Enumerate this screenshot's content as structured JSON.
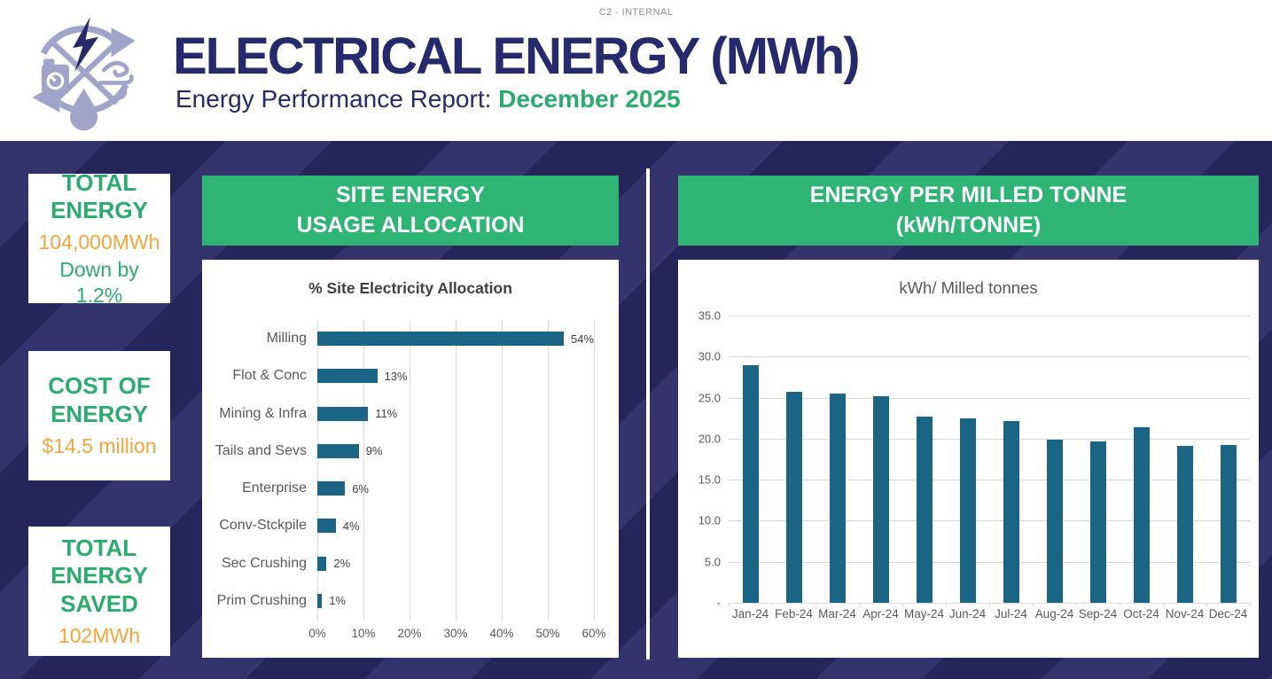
{
  "meta": {
    "classification": "C2 - INTERNAL"
  },
  "header": {
    "title": "ELECTRICAL ENERGY (MWh)",
    "subtitle_prefix": "Energy Performance Report: ",
    "subtitle_period": "December 2025"
  },
  "kpis": [
    {
      "title": "TOTAL ENERGY",
      "value": "104,000MWh",
      "note": "Down by 1.2%"
    },
    {
      "title": "COST OF ENERGY",
      "value": "$14.5 million",
      "note": ""
    },
    {
      "title": "TOTAL ENERGY SAVED",
      "value": "102MWh",
      "note": ""
    }
  ],
  "panels": {
    "allocation": {
      "header_line1": "SITE ENERGY",
      "header_line2": "USAGE ALLOCATION"
    },
    "intensity": {
      "header_line1": "ENERGY PER MILLED TONNE",
      "header_line2": "(kWh/TONNE)"
    }
  },
  "colors": {
    "navy_background": "#2b2a66",
    "green_accent": "#2eb573",
    "green_text": "#2cab6e",
    "orange_text": "#f4a53b",
    "bar_teal": "#1c6484",
    "title_navy": "#26296b",
    "gridline_gray": "#d9d9d9"
  },
  "chart_data": [
    {
      "type": "bar",
      "orientation": "horizontal",
      "title": "% Site Electricity Allocation",
      "categories": [
        "Milling",
        "Flot & Conc",
        "Mining & Infra",
        "Tails and Sevs",
        "Enterprise",
        "Conv-Stckpile",
        "Sec Crushing",
        "Prim Crushing"
      ],
      "values": [
        54,
        13,
        11,
        9,
        6,
        4,
        2,
        1
      ],
      "value_labels": [
        "54%",
        "13%",
        "11%",
        "9%",
        "6%",
        "4%",
        "2%",
        "1%"
      ],
      "xlim": [
        0,
        60
      ],
      "xticks": [
        "0%",
        "10%",
        "20%",
        "30%",
        "40%",
        "50%",
        "60%"
      ],
      "grid": "vertical",
      "legend": "none",
      "bar_color": "#1c6484"
    },
    {
      "type": "bar",
      "orientation": "vertical",
      "title": "kWh/ Milled tonnes",
      "categories": [
        "Jan-24",
        "Feb-24",
        "Mar-24",
        "Apr-24",
        "May-24",
        "Jun-24",
        "Jul-24",
        "Aug-24",
        "Sep-24",
        "Oct-24",
        "Nov-24",
        "Dec-24"
      ],
      "values": [
        29.0,
        25.7,
        25.5,
        25.2,
        22.7,
        22.5,
        22.2,
        19.9,
        19.7,
        21.4,
        19.1,
        19.2
      ],
      "ylim": [
        0,
        35
      ],
      "yticks": [
        "35.0",
        "30.0",
        "25.0",
        "20.0",
        "15.0",
        "10.0",
        "5.0",
        "-"
      ],
      "grid": "horizontal",
      "legend": "none",
      "bar_color": "#1c6484"
    }
  ]
}
